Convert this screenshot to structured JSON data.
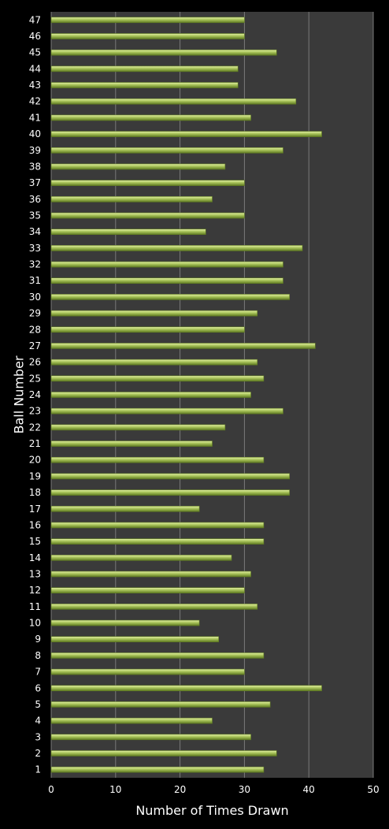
{
  "chart_data": {
    "type": "bar",
    "orientation": "horizontal",
    "title": "",
    "xlabel": "Number of Times Drawn",
    "ylabel": "Ball Number",
    "xlim": [
      0,
      50
    ],
    "x_ticks": [
      0,
      10,
      20,
      30,
      40,
      50
    ],
    "grid": "vertical",
    "legend": "none",
    "categories": [
      "1",
      "2",
      "3",
      "4",
      "5",
      "6",
      "7",
      "8",
      "9",
      "10",
      "11",
      "12",
      "13",
      "14",
      "15",
      "16",
      "17",
      "18",
      "19",
      "20",
      "21",
      "22",
      "23",
      "24",
      "25",
      "26",
      "27",
      "28",
      "29",
      "30",
      "31",
      "32",
      "33",
      "34",
      "35",
      "36",
      "37",
      "38",
      "39",
      "40",
      "41",
      "42",
      "43",
      "44",
      "45",
      "46",
      "47"
    ],
    "values": [
      33,
      35,
      31,
      25,
      34,
      42,
      30,
      33,
      26,
      23,
      32,
      30,
      31,
      28,
      33,
      33,
      23,
      37,
      37,
      33,
      25,
      27,
      36,
      31,
      33,
      32,
      41,
      30,
      32,
      37,
      36,
      36,
      39,
      24,
      30,
      25,
      30,
      27,
      36,
      42,
      31,
      38,
      29,
      29,
      35,
      30,
      30
    ]
  },
  "colors": {
    "background": "#000000",
    "plot_area": "#3a3a3a",
    "gridline": "#7a7a7a",
    "bar_light": "#e3f0a4",
    "bar_mid": "#a8c35a",
    "bar_dark": "#5f7a22",
    "text": "#ffffff"
  }
}
